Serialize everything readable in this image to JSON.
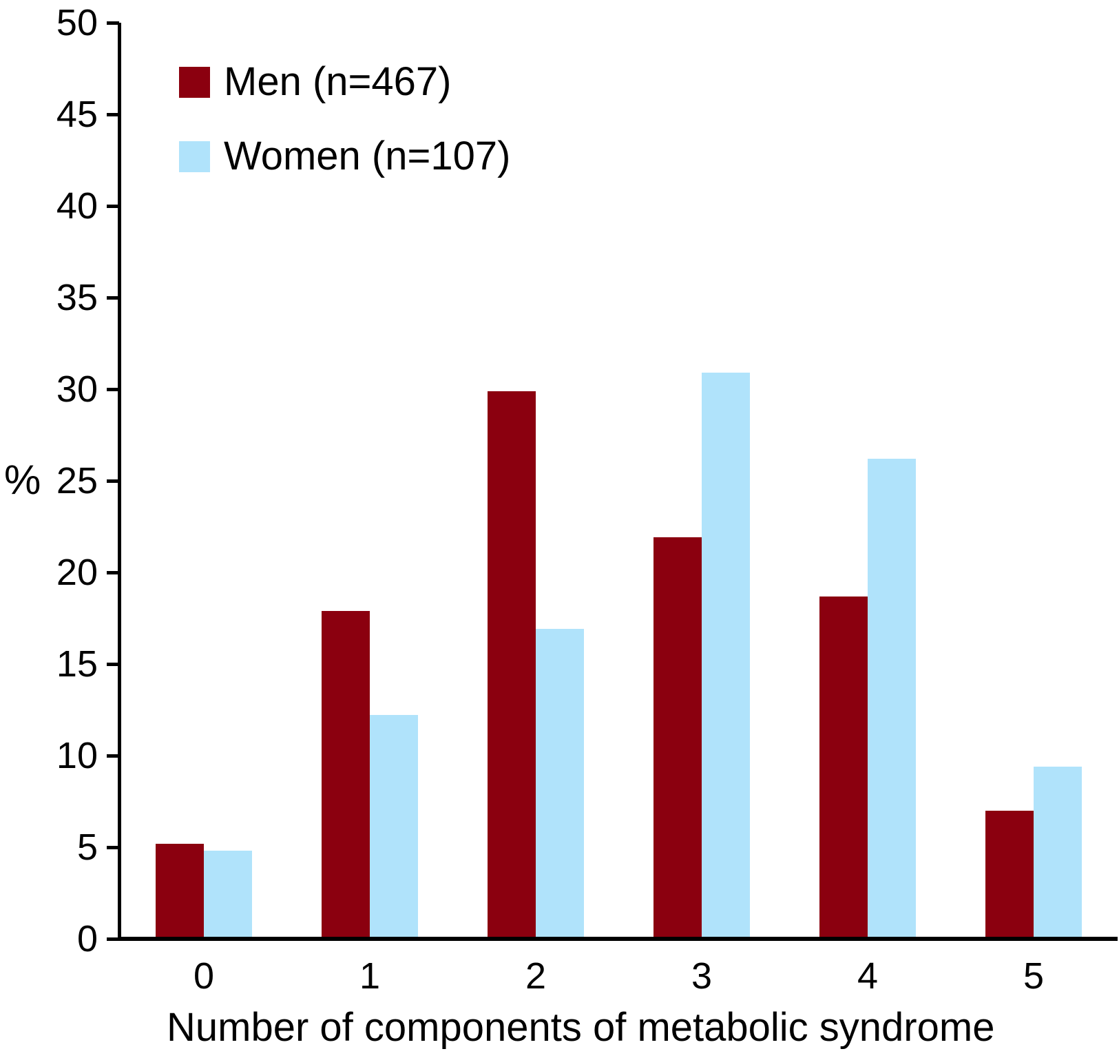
{
  "chart_data": {
    "type": "bar",
    "title": "",
    "categories": [
      "0",
      "1",
      "2",
      "3",
      "4",
      "5"
    ],
    "series": [
      {
        "name": "Men (n=467)",
        "color": "#8B000F",
        "values": [
          5.2,
          17.9,
          29.9,
          21.9,
          18.7,
          7.0
        ]
      },
      {
        "name": "Women (n=107)",
        "color": "#B0E3FB",
        "values": [
          4.8,
          12.2,
          16.9,
          30.9,
          26.2,
          9.4
        ]
      }
    ],
    "xlabel": "Number of components of metabolic syndrome",
    "ylabel": "%",
    "ylim": [
      0,
      50
    ],
    "ytick_step": 5,
    "ytick_labels": [
      "0",
      "5",
      "10",
      "15",
      "20",
      "25",
      "30",
      "35",
      "40",
      "45",
      "50"
    ],
    "grid": false,
    "legend_position": "top-left",
    "axis_color": "#000000",
    "background_color": "#ffffff"
  }
}
